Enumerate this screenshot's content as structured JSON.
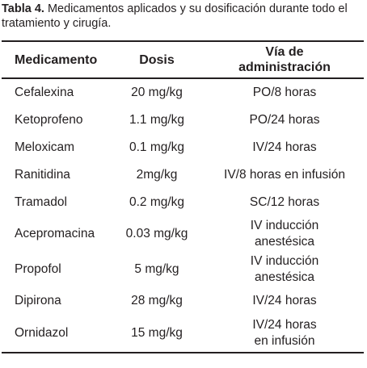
{
  "caption": {
    "label": "Tabla 4.",
    "text": " Medicamentos aplicados y su dosificación durante todo el tratamiento y cirugía."
  },
  "table": {
    "headers": {
      "medicamento": "Medicamento",
      "dosis": "Dosis",
      "via_line1": "Vía de",
      "via_line2": "administración"
    },
    "rows": [
      {
        "medicamento": "Cefalexina",
        "dosis": "20 mg/kg",
        "via": [
          "PO/8 horas"
        ]
      },
      {
        "medicamento": "Ketoprofeno",
        "dosis": "1.1 mg/kg",
        "via": [
          "PO/24 horas"
        ]
      },
      {
        "medicamento": "Meloxicam",
        "dosis": "0.1 mg/kg",
        "via": [
          "IV/24 horas"
        ]
      },
      {
        "medicamento": "Ranitidina",
        "dosis": "2mg/kg",
        "via": [
          "IV/8 horas en infusión"
        ]
      },
      {
        "medicamento": "Tramadol",
        "dosis": "0.2 mg/kg",
        "via": [
          "SC/12 horas"
        ]
      },
      {
        "medicamento": "Acepromacina",
        "dosis": "0.03 mg/kg",
        "via": [
          "IV inducción",
          "anestésica"
        ]
      },
      {
        "medicamento": "Propofol",
        "dosis": "5 mg/kg",
        "via": [
          "IV inducción",
          "anestésica"
        ]
      },
      {
        "medicamento": "Dipirona",
        "dosis": "28 mg/kg",
        "via": [
          "IV/24 horas"
        ]
      },
      {
        "medicamento": "Ornidazol",
        "dosis": "15 mg/kg",
        "via": [
          "IV/24 horas",
          "en infusión"
        ]
      }
    ]
  }
}
